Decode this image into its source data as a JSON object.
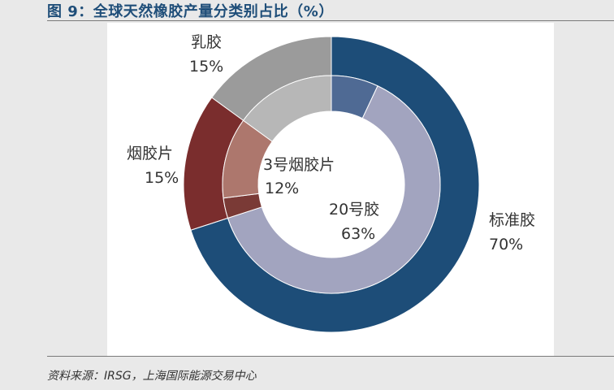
{
  "figure_title": "图 9：全球天然橡胶产量分类别占比（%）",
  "source": "资料来源：IRSG，上海国际能源交易中心",
  "colors": {
    "title": "#1f4e79",
    "outer": [
      "#1d4d78",
      "#7a2d2d",
      "#9b9b9b"
    ],
    "inner": [
      "#4f6a94",
      "#a2a4bf",
      "#7a3a36",
      "#ad776d",
      "#b7b7b7"
    ]
  },
  "chart_data": {
    "type": "pie",
    "subtype": "nested-donut",
    "title": "",
    "outer_ring": {
      "categories": [
        "标准胶",
        "烟胶片",
        "乳胶"
      ],
      "values": [
        70,
        15,
        15
      ],
      "labels": [
        "70%",
        "15%",
        "15%"
      ]
    },
    "inner_ring": {
      "categories": [
        "",
        "20号胶",
        "",
        "3号烟胶片",
        ""
      ],
      "values": [
        7,
        63,
        3,
        12,
        15
      ],
      "labels": [
        "",
        "63%",
        "",
        "12%",
        ""
      ]
    },
    "legend": "none"
  }
}
